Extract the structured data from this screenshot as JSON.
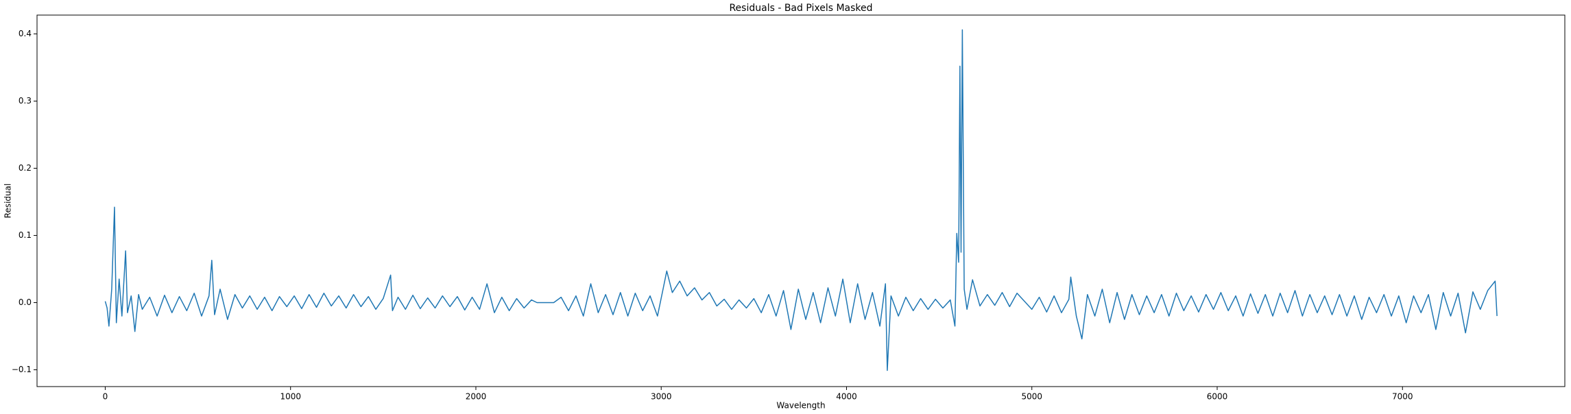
{
  "chart_data": {
    "type": "line",
    "title": "Residuals - Bad Pixels Masked",
    "x_label": "Wavelength",
    "y_label": "Residual",
    "color": "#1f77b4",
    "xlim": [
      -368,
      7876
    ],
    "ylim": [
      -0.125,
      0.428
    ],
    "xticks": [
      0,
      1000,
      2000,
      3000,
      4000,
      5000,
      6000,
      7000
    ],
    "yticks": [
      {
        "value": -0.1,
        "label": "−0.1"
      },
      {
        "value": 0,
        "label": "0.0"
      },
      0.1,
      0.2,
      0.3,
      0.4
    ],
    "x": [
      0,
      10,
      20,
      35,
      50,
      60,
      75,
      90,
      110,
      120,
      140,
      160,
      180,
      200,
      240,
      280,
      320,
      360,
      400,
      440,
      480,
      520,
      560,
      575,
      590,
      620,
      660,
      700,
      740,
      780,
      820,
      860,
      900,
      940,
      980,
      1020,
      1060,
      1100,
      1140,
      1180,
      1220,
      1260,
      1300,
      1340,
      1380,
      1420,
      1460,
      1500,
      1540,
      1550,
      1580,
      1620,
      1660,
      1700,
      1740,
      1780,
      1820,
      1860,
      1900,
      1940,
      1980,
      2020,
      2060,
      2100,
      2140,
      2180,
      2220,
      2260,
      2300,
      2330,
      2420,
      2460,
      2500,
      2540,
      2580,
      2620,
      2660,
      2700,
      2740,
      2780,
      2820,
      2860,
      2900,
      2940,
      2980,
      3010,
      3030,
      3060,
      3100,
      3140,
      3180,
      3220,
      3260,
      3300,
      3340,
      3380,
      3420,
      3460,
      3500,
      3540,
      3580,
      3620,
      3660,
      3700,
      3740,
      3780,
      3820,
      3860,
      3900,
      3940,
      3980,
      4020,
      4060,
      4100,
      4140,
      4180,
      4210,
      4220,
      4240,
      4280,
      4320,
      4360,
      4400,
      4440,
      4480,
      4520,
      4560,
      4585,
      4595,
      4605,
      4612,
      4618,
      4625,
      4635,
      4650,
      4680,
      4720,
      4760,
      4800,
      4840,
      4880,
      4920,
      4960,
      5000,
      5040,
      5080,
      5120,
      5160,
      5200,
      5210,
      5240,
      5270,
      5300,
      5340,
      5380,
      5420,
      5460,
      5500,
      5540,
      5580,
      5620,
      5660,
      5700,
      5740,
      5780,
      5820,
      5860,
      5900,
      5940,
      5980,
      6020,
      6060,
      6100,
      6140,
      6180,
      6220,
      6260,
      6300,
      6340,
      6380,
      6420,
      6460,
      6500,
      6540,
      6580,
      6620,
      6660,
      6700,
      6740,
      6780,
      6820,
      6860,
      6900,
      6940,
      6980,
      7020,
      7060,
      7100,
      7140,
      7180,
      7220,
      7260,
      7300,
      7340,
      7380,
      7420,
      7460,
      7500,
      7510
    ],
    "values": [
      0.002,
      -0.008,
      -0.035,
      0.02,
      0.142,
      -0.03,
      0.035,
      -0.02,
      0.077,
      -0.015,
      0.01,
      -0.043,
      0.012,
      -0.01,
      0.008,
      -0.02,
      0.011,
      -0.015,
      0.009,
      -0.012,
      0.014,
      -0.02,
      0.01,
      0.063,
      -0.018,
      0.02,
      -0.025,
      0.012,
      -0.008,
      0.01,
      -0.01,
      0.008,
      -0.012,
      0.009,
      -0.006,
      0.01,
      -0.009,
      0.012,
      -0.007,
      0.014,
      -0.005,
      0.01,
      -0.008,
      0.012,
      -0.006,
      0.009,
      -0.01,
      0.006,
      0.041,
      -0.012,
      0.008,
      -0.01,
      0.011,
      -0.009,
      0.007,
      -0.008,
      0.01,
      -0.006,
      0.009,
      -0.011,
      0.008,
      -0.01,
      0.028,
      -0.015,
      0.008,
      -0.012,
      0.006,
      -0.008,
      0.004,
      0.0,
      0.0,
      0.008,
      -0.012,
      0.01,
      -0.02,
      0.028,
      -0.015,
      0.012,
      -0.018,
      0.015,
      -0.02,
      0.014,
      -0.012,
      0.01,
      -0.02,
      0.02,
      0.047,
      0.015,
      0.032,
      0.01,
      0.022,
      0.004,
      0.015,
      -0.005,
      0.005,
      -0.01,
      0.004,
      -0.008,
      0.006,
      -0.015,
      0.012,
      -0.02,
      0.018,
      -0.04,
      0.02,
      -0.025,
      0.015,
      -0.03,
      0.022,
      -0.02,
      0.035,
      -0.03,
      0.028,
      -0.025,
      0.015,
      -0.035,
      0.028,
      -0.101,
      0.01,
      -0.02,
      0.008,
      -0.012,
      0.006,
      -0.01,
      0.005,
      -0.008,
      0.004,
      -0.035,
      0.103,
      0.06,
      0.352,
      0.075,
      0.406,
      0.02,
      -0.01,
      0.034,
      -0.005,
      0.012,
      -0.004,
      0.015,
      -0.006,
      0.014,
      0.002,
      -0.01,
      0.008,
      -0.014,
      0.01,
      -0.015,
      0.005,
      0.038,
      -0.02,
      -0.054,
      0.012,
      -0.02,
      0.02,
      -0.03,
      0.015,
      -0.025,
      0.012,
      -0.018,
      0.01,
      -0.015,
      0.012,
      -0.02,
      0.014,
      -0.012,
      0.01,
      -0.014,
      0.012,
      -0.01,
      0.015,
      -0.012,
      0.01,
      -0.02,
      0.013,
      -0.016,
      0.012,
      -0.02,
      0.014,
      -0.015,
      0.018,
      -0.02,
      0.012,
      -0.015,
      0.01,
      -0.018,
      0.012,
      -0.02,
      0.01,
      -0.025,
      0.008,
      -0.015,
      0.012,
      -0.02,
      0.01,
      -0.03,
      0.01,
      -0.015,
      0.012,
      -0.04,
      0.015,
      -0.02,
      0.014,
      -0.045,
      0.016,
      -0.01,
      0.018,
      0.032,
      -0.02
    ]
  }
}
